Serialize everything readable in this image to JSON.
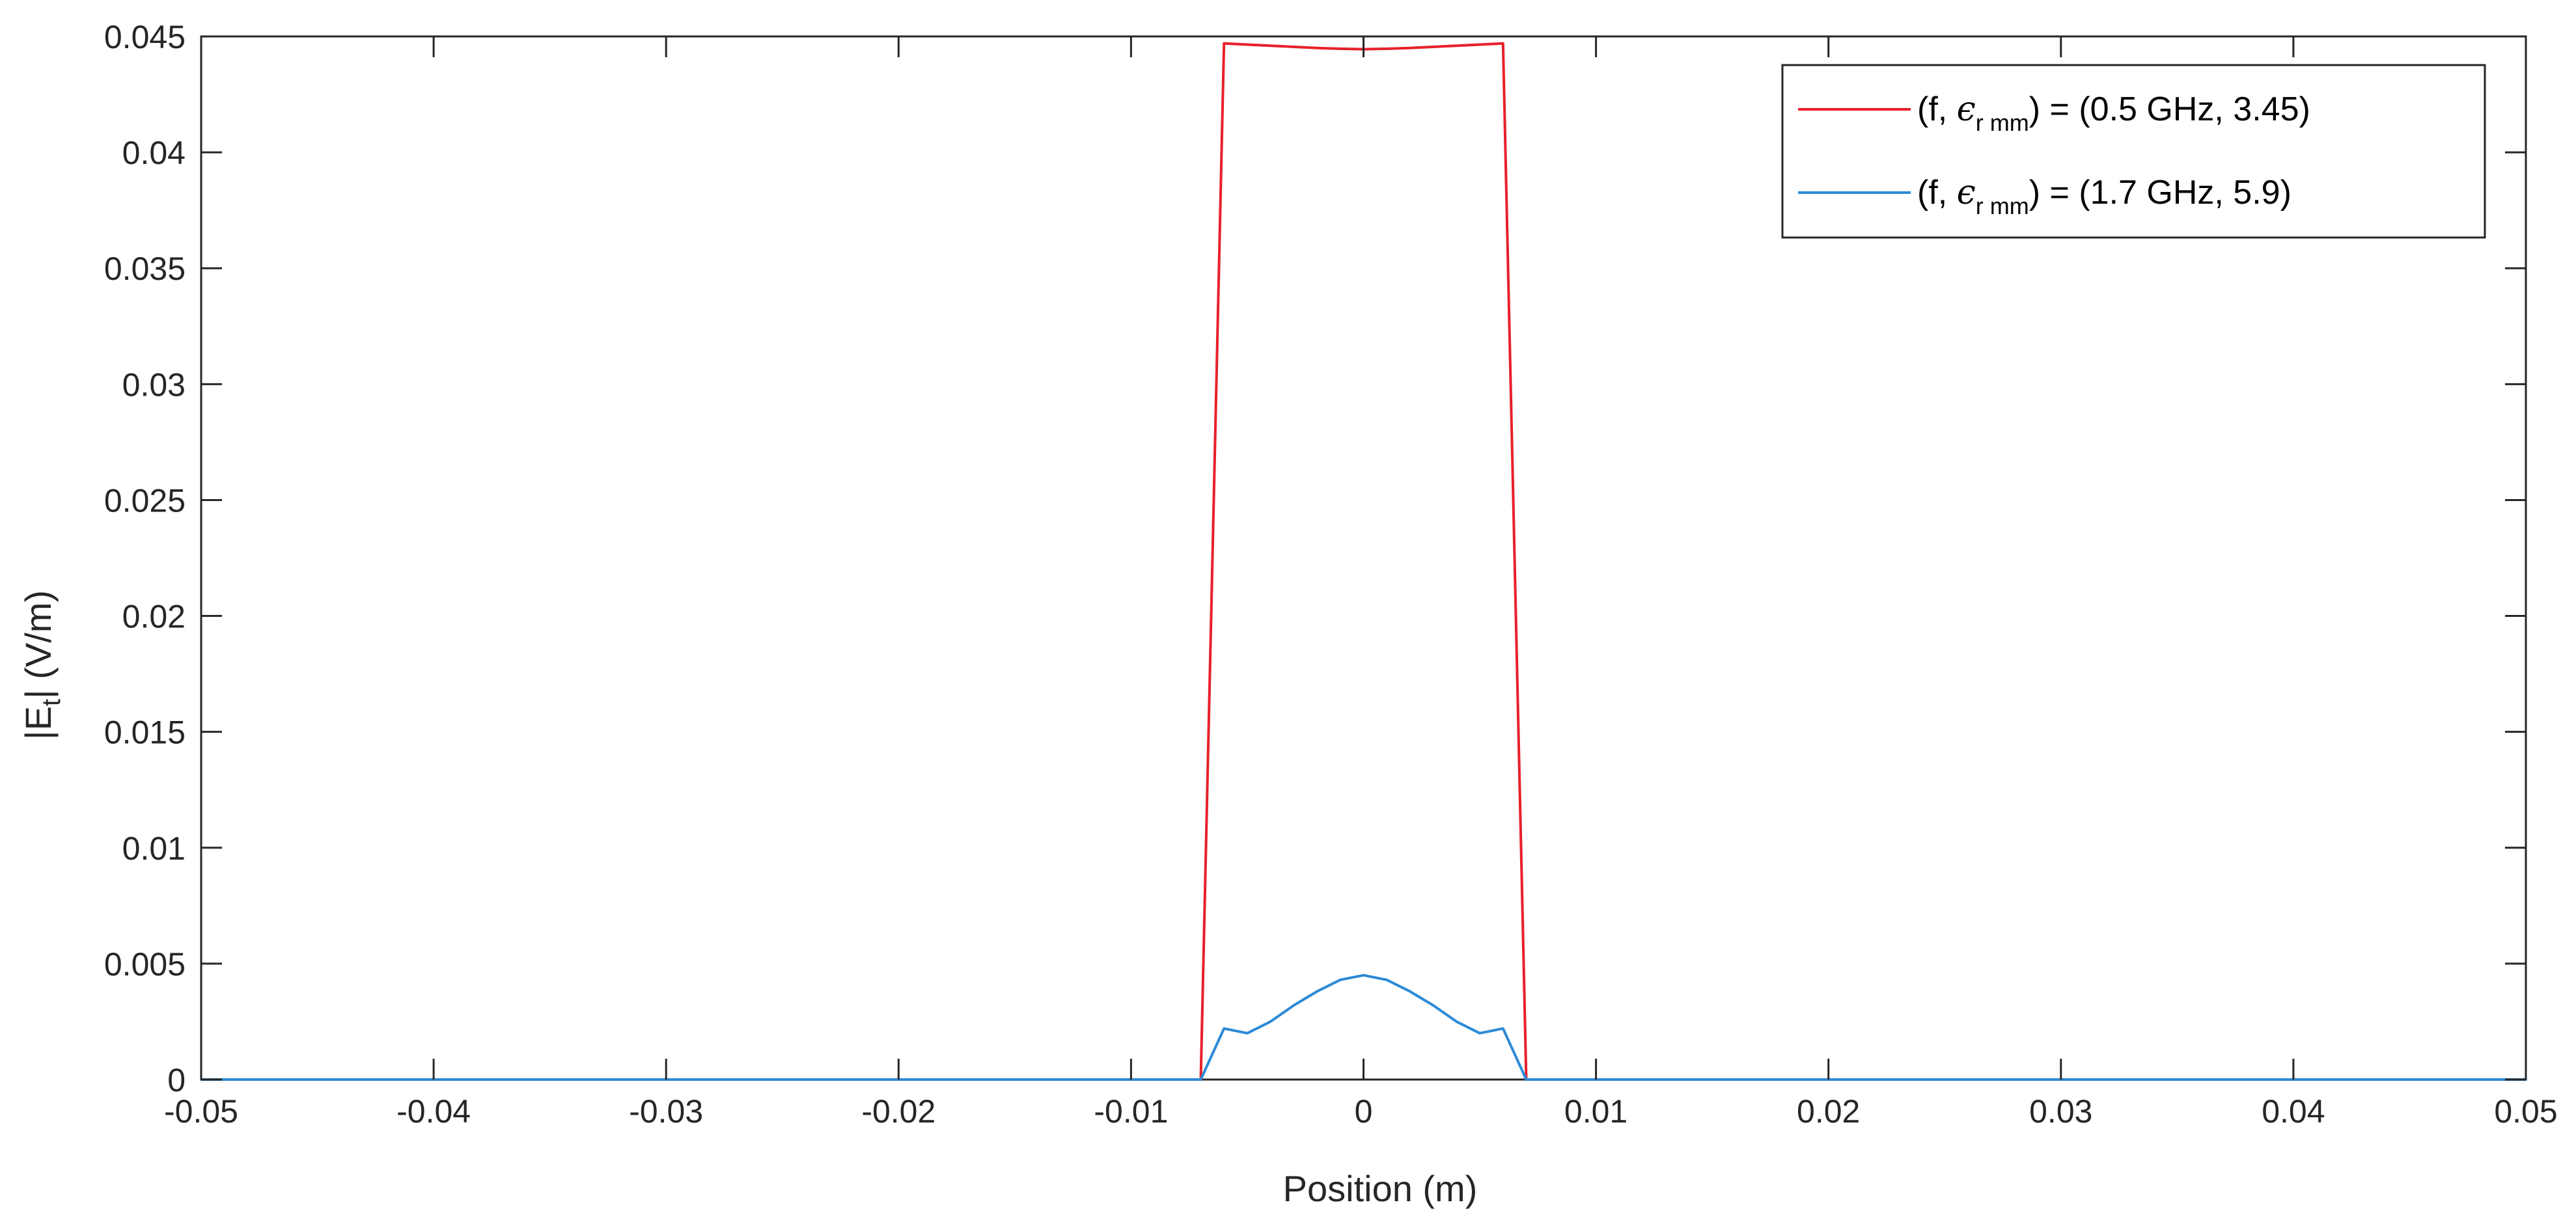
{
  "chart_data": {
    "type": "line",
    "title": "",
    "xlabel": "Position (m)",
    "ylabel": {
      "prefix": "|E",
      "subscript": "t",
      "suffix": "|  (V/m)"
    },
    "xlim": [
      -0.05,
      0.05
    ],
    "ylim": [
      0,
      0.045
    ],
    "xticks": [
      -0.05,
      -0.04,
      -0.03,
      -0.02,
      -0.01,
      0,
      0.01,
      0.02,
      0.03,
      0.04,
      0.05
    ],
    "xtick_labels": [
      "-0.05",
      "-0.04",
      "-0.03",
      "-0.02",
      "-0.01",
      "0",
      "0.01",
      "0.02",
      "0.03",
      "0.04",
      "0.05"
    ],
    "yticks": [
      0,
      0.005,
      0.01,
      0.015,
      0.02,
      0.025,
      0.03,
      0.035,
      0.04,
      0.045
    ],
    "ytick_labels": [
      "0",
      "0.005",
      "0.01",
      "0.015",
      "0.02",
      "0.025",
      "0.03",
      "0.035",
      "0.04",
      "0.045"
    ],
    "grid": false,
    "legend_position": "top-right",
    "series": [
      {
        "name": "(f, ϵ r mm) = (0.5 GHz, 3.45)",
        "legend": {
          "prefix": "(f, ",
          "symbol": "ϵ",
          "subscript": "r mm",
          "suffix": ") = (0.5 GHz, 3.45)"
        },
        "color": "#e8202a",
        "x": [
          -0.05,
          -0.007,
          -0.006,
          -0.005,
          -0.004,
          -0.003,
          -0.002,
          -0.001,
          0,
          0.001,
          0.002,
          0.003,
          0.004,
          0.005,
          0.006,
          0.007,
          0.05
        ],
        "y": [
          0,
          0,
          0.0447,
          0.04465,
          0.0446,
          0.04455,
          0.0445,
          0.04447,
          0.04445,
          0.04447,
          0.0445,
          0.04455,
          0.0446,
          0.04465,
          0.0447,
          0,
          0
        ]
      },
      {
        "name": "(f, ϵ r mm) = (1.7 GHz, 5.9)",
        "legend": {
          "prefix": "(f, ",
          "symbol": "ϵ",
          "subscript": "r mm",
          "suffix": ") = (1.7 GHz, 5.9)"
        },
        "color": "#2c8ad6",
        "x": [
          -0.05,
          -0.007,
          -0.006,
          -0.005,
          -0.004,
          -0.003,
          -0.002,
          -0.001,
          0,
          0.001,
          0.002,
          0.003,
          0.004,
          0.005,
          0.006,
          0.007,
          0.05
        ],
        "y": [
          0,
          0,
          0.0022,
          0.002,
          0.0025,
          0.0032,
          0.0038,
          0.0043,
          0.0045,
          0.0043,
          0.0038,
          0.0032,
          0.0025,
          0.002,
          0.0022,
          0,
          0
        ]
      }
    ]
  }
}
